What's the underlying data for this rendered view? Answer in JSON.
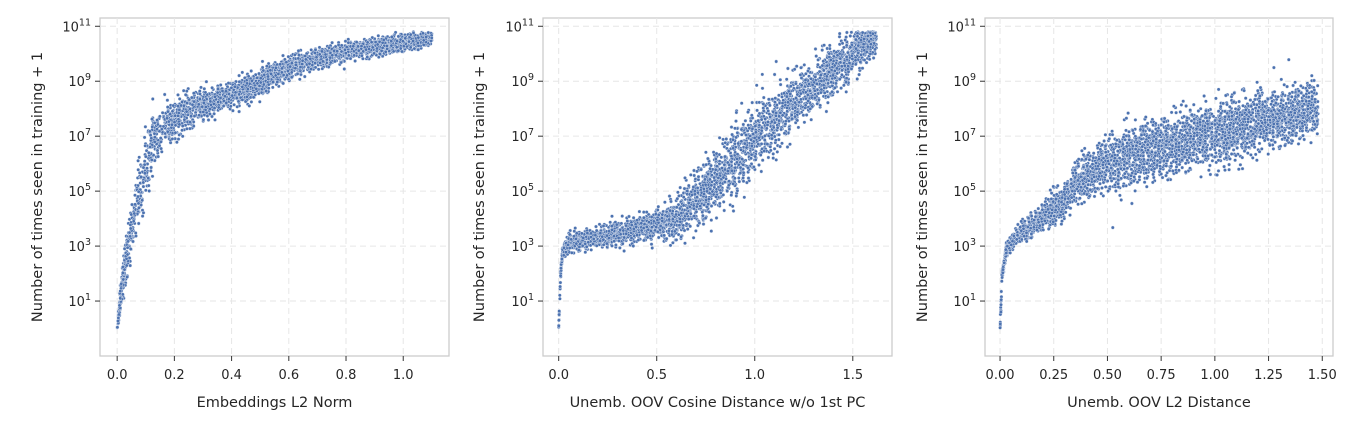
{
  "chart_data": [
    {
      "type": "scatter",
      "xlabel": "Embeddings L2 Norm",
      "ylabel": "Number of times seen in training + 1",
      "yscale": "log",
      "xlim": [
        -0.06,
        1.16
      ],
      "ylim": [
        0.1,
        200000000000
      ],
      "xticks": [
        0.0,
        0.2,
        0.4,
        0.6,
        0.8,
        1.0
      ],
      "xtick_labels": [
        "0.0",
        "0.2",
        "0.4",
        "0.6",
        "0.8",
        "1.0"
      ],
      "yticks": [
        10,
        1000,
        100000,
        10000000,
        1000000000,
        100000000000
      ],
      "ytick_labels": [
        {
          "base": "10",
          "exp": "1"
        },
        {
          "base": "10",
          "exp": "3"
        },
        {
          "base": "10",
          "exp": "5"
        },
        {
          "base": "10",
          "exp": "7"
        },
        {
          "base": "10",
          "exp": "9"
        },
        {
          "base": "10",
          "exp": "11"
        }
      ],
      "grid": true,
      "color": "#4c72b0",
      "curve": [
        [
          0.0,
          0.0
        ],
        [
          0.01,
          1.0
        ],
        [
          0.03,
          2.5
        ],
        [
          0.05,
          3.5
        ],
        [
          0.08,
          5.0
        ],
        [
          0.1,
          6.0
        ],
        [
          0.13,
          6.8
        ],
        [
          0.16,
          7.2
        ],
        [
          0.2,
          7.6
        ],
        [
          0.25,
          7.9
        ],
        [
          0.3,
          8.15
        ],
        [
          0.4,
          8.5
        ],
        [
          0.5,
          8.95
        ],
        [
          0.6,
          9.5
        ],
        [
          0.7,
          9.8
        ],
        [
          0.8,
          10.1
        ],
        [
          1.0,
          10.4
        ],
        [
          1.1,
          10.55
        ]
      ],
      "spread": [
        [
          0.0,
          0.3
        ],
        [
          0.03,
          0.7
        ],
        [
          0.08,
          1.1
        ],
        [
          0.15,
          0.8
        ],
        [
          0.3,
          0.45
        ],
        [
          0.5,
          0.4
        ],
        [
          0.7,
          0.3
        ],
        [
          1.1,
          0.25
        ]
      ],
      "x_range": [
        0.0,
        1.1
      ],
      "n_points": 3200
    },
    {
      "type": "scatter",
      "xlabel": "Unemb. OOV Cosine Distance w/o 1st PC",
      "ylabel": "Number of times seen in training + 1",
      "yscale": "log",
      "xlim": [
        -0.08,
        1.7
      ],
      "ylim": [
        0.1,
        200000000000
      ],
      "xticks": [
        0.0,
        0.5,
        1.0,
        1.5
      ],
      "xtick_labels": [
        "0.0",
        "0.5",
        "1.0",
        "1.5"
      ],
      "yticks": [
        10,
        1000,
        100000,
        10000000,
        1000000000,
        100000000000
      ],
      "ytick_labels": [
        {
          "base": "10",
          "exp": "1"
        },
        {
          "base": "10",
          "exp": "3"
        },
        {
          "base": "10",
          "exp": "5"
        },
        {
          "base": "10",
          "exp": "7"
        },
        {
          "base": "10",
          "exp": "9"
        },
        {
          "base": "10",
          "exp": "11"
        }
      ],
      "grid": true,
      "color": "#4c72b0",
      "curve": [
        [
          0.0,
          0.0
        ],
        [
          0.005,
          1.0
        ],
        [
          0.01,
          2.0
        ],
        [
          0.02,
          2.8
        ],
        [
          0.05,
          3.1
        ],
        [
          0.2,
          3.3
        ],
        [
          0.4,
          3.6
        ],
        [
          0.6,
          4.0
        ],
        [
          0.7,
          4.6
        ],
        [
          0.8,
          5.4
        ],
        [
          0.9,
          6.2
        ],
        [
          1.0,
          6.9
        ],
        [
          1.1,
          7.6
        ],
        [
          1.2,
          8.2
        ],
        [
          1.3,
          8.8
        ],
        [
          1.4,
          9.4
        ],
        [
          1.5,
          10.0
        ],
        [
          1.6,
          10.6
        ]
      ],
      "spread": [
        [
          0.0,
          0.15
        ],
        [
          0.05,
          0.3
        ],
        [
          0.5,
          0.45
        ],
        [
          0.7,
          0.9
        ],
        [
          0.9,
          1.2
        ],
        [
          1.2,
          0.9
        ],
        [
          1.6,
          0.6
        ]
      ],
      "x_range": [
        0.0,
        1.62
      ],
      "n_points": 3200
    },
    {
      "type": "scatter",
      "xlabel": "Unemb. OOV L2 Distance",
      "ylabel": "Number of times seen in training + 1",
      "yscale": "log",
      "xlim": [
        -0.07,
        1.55
      ],
      "ylim": [
        0.1,
        200000000000
      ],
      "xticks": [
        0.0,
        0.25,
        0.5,
        0.75,
        1.0,
        1.25,
        1.5
      ],
      "xtick_labels": [
        "0.00",
        "0.25",
        "0.50",
        "0.75",
        "1.00",
        "1.25",
        "1.50"
      ],
      "yticks": [
        10,
        1000,
        100000,
        10000000,
        1000000000,
        100000000000
      ],
      "ytick_labels": [
        {
          "base": "10",
          "exp": "1"
        },
        {
          "base": "10",
          "exp": "3"
        },
        {
          "base": "10",
          "exp": "5"
        },
        {
          "base": "10",
          "exp": "7"
        },
        {
          "base": "10",
          "exp": "9"
        },
        {
          "base": "10",
          "exp": "11"
        }
      ],
      "grid": true,
      "color": "#4c72b0",
      "curve": [
        [
          0.0,
          0.0
        ],
        [
          0.005,
          1.0
        ],
        [
          0.01,
          2.0
        ],
        [
          0.03,
          2.9
        ],
        [
          0.1,
          3.5
        ],
        [
          0.2,
          4.0
        ],
        [
          0.3,
          4.7
        ],
        [
          0.35,
          5.3
        ],
        [
          0.5,
          6.0
        ],
        [
          0.75,
          6.6
        ],
        [
          1.0,
          7.1
        ],
        [
          1.25,
          7.6
        ],
        [
          1.45,
          8.0
        ]
      ],
      "spread": [
        [
          0.0,
          0.2
        ],
        [
          0.1,
          0.3
        ],
        [
          0.3,
          0.6
        ],
        [
          0.5,
          0.9
        ],
        [
          1.0,
          1.0
        ],
        [
          1.45,
          0.8
        ]
      ],
      "x_range": [
        0.0,
        1.48
      ],
      "n_points": 3600
    }
  ]
}
